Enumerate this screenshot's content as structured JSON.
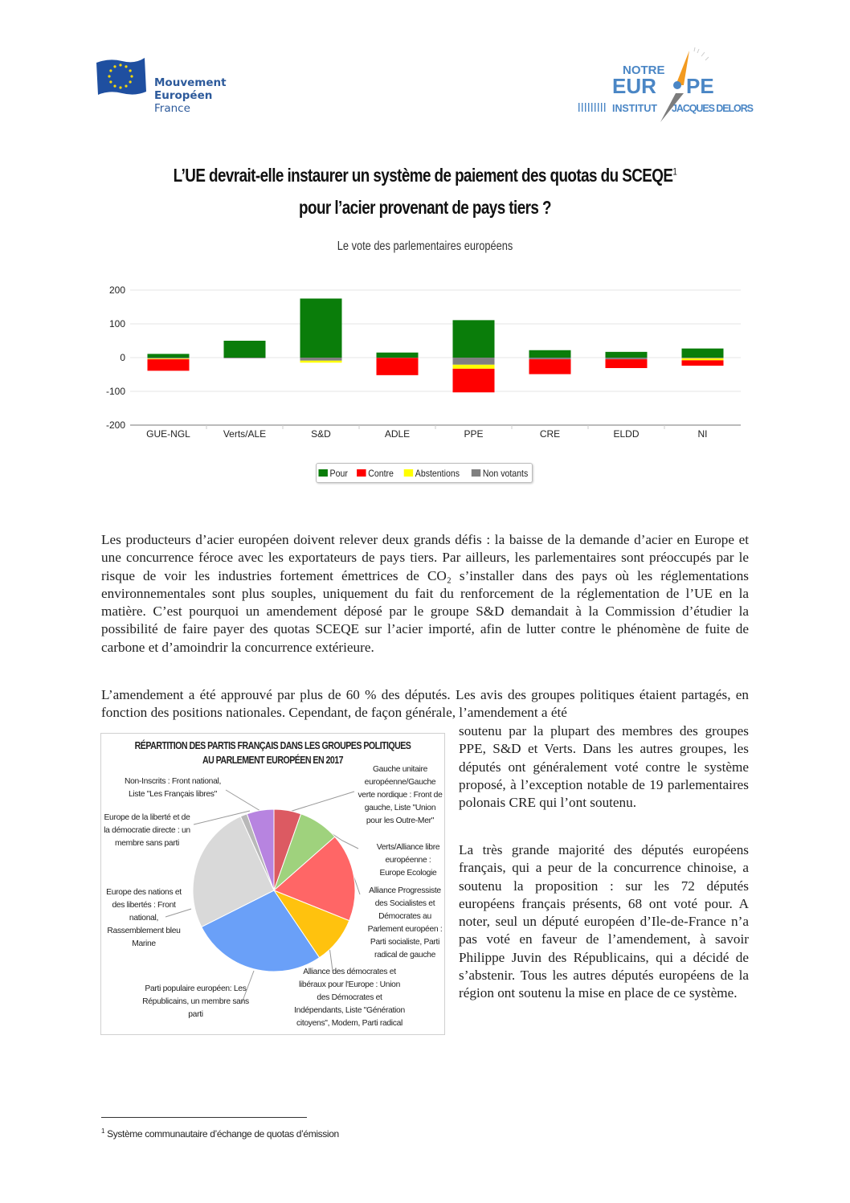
{
  "logos": {
    "left": {
      "lines": [
        "Mouvement",
        "Européen",
        "France"
      ],
      "flag_color": "#1f4fa0",
      "star_color": "#f6d80a"
    },
    "right": {
      "top": "NOTRE",
      "main": "EUR•PE",
      "left_sub": "INSTITUT",
      "right_sub": "JACQUES DELORS",
      "text_color": "#4a86c5",
      "accent": "#f39a1f"
    }
  },
  "title": {
    "line1": "L’UE devrait-elle instaurer un système de paiement des quotas du SCEQE",
    "footnote_mark": "1",
    "line2": "pour l’acier provenant de pays tiers ?"
  },
  "subtitle": "Le vote des parlementaires européens",
  "chart_data": [
    {
      "type": "bar",
      "stacked": true,
      "categories": [
        "GUE-NGL",
        "Verts/ALE",
        "S&D",
        "ADLE",
        "PPE",
        "CRE",
        "ELDD",
        "NI"
      ],
      "ylim": [
        -200,
        200
      ],
      "yticks": [
        200,
        100,
        0,
        -100,
        -200
      ],
      "grid": true,
      "legend_position": "bottom",
      "series": [
        {
          "name": "Pour",
          "color": "#0a7d0a",
          "values": [
            11,
            50,
            175,
            15,
            111,
            22,
            17,
            27
          ]
        },
        {
          "name": "Contre",
          "color": "#ff0000",
          "values": [
            -34,
            0,
            0,
            -51,
            -70,
            -44,
            -26,
            -16
          ]
        },
        {
          "name": "Abstentions",
          "color": "#ffff00",
          "values": [
            -2,
            0,
            -6,
            0,
            -12,
            0,
            0,
            -6
          ]
        },
        {
          "name": "Non votants",
          "color": "#808080",
          "values": [
            -3,
            -2,
            -9,
            -1,
            -21,
            -5,
            -5,
            -2
          ]
        }
      ]
    },
    {
      "type": "pie",
      "title_line1": "RÉPARTITION DES PARTIS FRANÇAIS DANS LES GROUPES POLITIQUES",
      "title_line2": "AU PARLEMENT EUROPÉEN EN 2017",
      "slices": [
        {
          "label": "Gauche unitaire européenne/Gauche verte nordique : Front de gauche, Liste \"Union pour les Outre-Mer\"",
          "value": 4,
          "color": "#dc5a62"
        },
        {
          "label": "Verts/Alliance libre européenne : Europe Ecologie",
          "value": 6,
          "color": "#9fd27d"
        },
        {
          "label": "Alliance Progressiste des Socialistes et Démocrates au Parlement européen : Parti socialiste, Parti radical de gauche",
          "value": 13,
          "color": "#ff6666"
        },
        {
          "label": "Alliance des démocrates et libéraux pour l'Europe : Union des Démocrates et Indépendants, Liste \"Génération citoyens\", Modem, Parti radical",
          "value": 7,
          "color": "#ffc20e"
        },
        {
          "label": "Parti populaire européen: Les Républicains, un membre sans parti",
          "value": 20,
          "color": "#6aa0f8"
        },
        {
          "label": "Europe des nations et des libertés : Front national, Rassemblement bleu Marine",
          "value": 19,
          "color": "#d9d9d9"
        },
        {
          "label": "Europe de la liberté et de la démocratie directe : un membre sans parti",
          "value": 1,
          "color": "#b8b8b8"
        },
        {
          "label": "Non-Inscrits : Front national, Liste \"Les Français libres\"",
          "value": 4,
          "color": "#b784e0"
        }
      ]
    }
  ],
  "body": {
    "p1": "Les producteurs d’acier européen doivent relever deux grands défis : la baisse de la demande d’acier en Europe et une concurrence féroce avec les exportateurs de pays tiers. Par ailleurs, les parlementaires sont préoccupés par le risque de voir les industries fortement émettrices de CO₂ s’installer dans des pays où les réglementations environnementales sont plus souples, uniquement du fait du renforcement de la réglementation de l’UE en la matière. C’est pourquoi un amendement déposé par le groupe S&D demandait à la Commission d’étudier la possibilité de faire payer des quotas SCEQE sur l’acier importé, afin de lutter contre le phénomène de fuite de carbone et d’amoindrir la concurrence extérieure.",
    "p2_full": "L’amendement a été approuvé par plus de 60 % des députés. Les avis des groupes politiques étaient partagés, en fonction des positions nationales. Cependant, de façon générale, l’amendement a été",
    "p2_col": "soutenu par la plupart des membres des groupes PPE, S&D et Verts. Dans les autres groupes, les députés ont généralement voté contre le système proposé, à l’exception notable de 19 parlementaires polonais CRE qui l’ont soutenu.",
    "p3": "La très grande majorité des députés européens français, qui a peur de la concurrence chinoise, a soutenu la proposition : sur les 72 députés européens français présents, 68 ont voté pour. A noter, seul un député européen d’Ile-de-France n’a pas voté en faveur de l’amendement, à savoir Philippe Juvin des Républicains, qui a décidé de s’abstenir. Tous les autres députés européens de la région ont soutenu la mise en place de ce système."
  },
  "footnote": {
    "mark": "1",
    "text": "Système communautaire d’échange de quotas d’émission"
  }
}
